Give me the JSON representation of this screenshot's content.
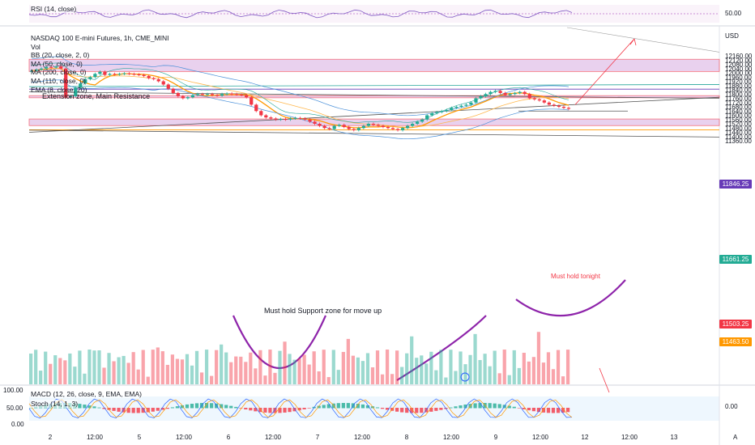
{
  "chart_data": {
    "type": "candlestick",
    "instrument": "NASDAQ 100 E-mini Futures, 1h, CME_MINI",
    "currency": "USD",
    "price_axis": {
      "ticks": [
        "12160.00",
        "12120.00",
        "12080.00",
        "12040.00",
        "12000.00",
        "11960.00",
        "11920.00",
        "11880.00",
        "11840.00",
        "11800.00",
        "11760.00",
        "11720.00",
        "11680.00",
        "11640.00",
        "11600.00",
        "11560.00",
        "11520.00",
        "11480.00",
        "11440.00",
        "11400.00",
        "11360.00"
      ],
      "range": [
        11340,
        12200
      ]
    },
    "time_axis": {
      "ticks": [
        "2",
        "12:00",
        "5",
        "12:00",
        "6",
        "12:00",
        "7",
        "12:00",
        "8",
        "12:00",
        "9",
        "12:00",
        "12",
        "12:00",
        "13"
      ]
    },
    "indicators": [
      "Vol",
      "BB (20, close, 2, 0)",
      "MA (50, close, 0)",
      "MA (200, close, 0)",
      "MA (110, close, 0)",
      "EMA (8, close, 20)"
    ],
    "price_labels": [
      {
        "text": "11846.25",
        "value": 11846.25,
        "color": "#673ab7"
      },
      {
        "text": "11661.25",
        "value": 11661.25,
        "color": "#22ab94"
      },
      {
        "text": "11503.25",
        "value": 11503.25,
        "color": "#f23645"
      },
      {
        "text": "11463.50",
        "value": 11463.5,
        "color": "#ff9800"
      }
    ],
    "candles_close": [
      12020,
      12030,
      12040,
      12055,
      12050,
      12060,
      12040,
      11770,
      11780,
      11860,
      11900,
      11940,
      11960,
      11990,
      12010,
      11980,
      11990,
      11985,
      11990,
      11995,
      11990,
      11985,
      11980,
      11970,
      11950,
      11940,
      11920,
      11890,
      11850,
      11810,
      11780,
      11760,
      11770,
      11790,
      11800,
      11795,
      11800,
      11790,
      11785,
      11800,
      11805,
      11800,
      11795,
      11790,
      11770,
      11700,
      11640,
      11600,
      11580,
      11570,
      11560,
      11565,
      11560,
      11570,
      11575,
      11570,
      11560,
      11540,
      11520,
      11500,
      11480,
      11470,
      11500,
      11510,
      11490,
      11470,
      11460,
      11480,
      11500,
      11520,
      11510,
      11500,
      11490,
      11480,
      11470,
      11460,
      11480,
      11500,
      11520,
      11540,
      11560,
      11600,
      11620,
      11630,
      11640,
      11650,
      11670,
      11680,
      11690,
      11700,
      11720,
      11760,
      11780,
      11800,
      11820,
      11830,
      11810,
      11790,
      11800,
      11810,
      11820,
      11800,
      11760,
      11750,
      11740,
      11720,
      11700,
      11690,
      11680,
      11670,
      11661
    ],
    "annotations": [
      "Extension zone, Main Resistance",
      "Must hold Support zone for move up",
      "Must hold tonight"
    ],
    "rsi": {
      "label": "RSI (14, close)",
      "level": "50.00"
    },
    "macd": {
      "label": "MACD (12, 26, close, 9, EMA, EMA)",
      "axis": "100.00",
      "value": "0.00"
    },
    "stoch": {
      "label": "Stoch (14, 1, 3)",
      "axis": [
        "50.00",
        "0.00"
      ]
    }
  },
  "ui": {
    "rsi_label": "RSI (14, close)",
    "rsi_value": "50.00",
    "title": "NASDAQ 100 E-mini Futures, 1h, CME_MINI",
    "vol": "Vol",
    "bb": "BB (20, close, 2, 0)",
    "ma50": "MA (50, close, 0)",
    "ma200": "MA (200, close, 0)",
    "ma110": "MA (110, close, 0)",
    "ema": "EMA (8, close, 20)",
    "usd": "USD",
    "macd_label": "MACD (12, 26, close, 9, EMA, EMA)",
    "stoch_label": "Stoch (14, 1, 3)",
    "macd_axis": "100.00",
    "stoch_axis_50": "50.00",
    "stoch_axis_0": "0.00",
    "osc_value": "0.00",
    "annot_ext": "Extension zone, Main Resistance",
    "annot_support": "Must hold Support zone for move up",
    "annot_tonight": "Must hold tonight",
    "tag_1": "11846.25",
    "tag_2": "11661.25",
    "tag_3": "11503.25",
    "tag_4": "11463.50",
    "x_ticks": [
      "2",
      "12:00",
      "5",
      "12:00",
      "6",
      "12:00",
      "7",
      "12:00",
      "8",
      "12:00",
      "9",
      "12:00",
      "12",
      "12:00",
      "13"
    ],
    "auto_icon": "A"
  },
  "colors": {
    "up": "#22ab94",
    "down": "#f23645",
    "zone": "#e1bee7",
    "purple": "#8e24aa",
    "orange": "#ff9800",
    "blue": "#2962ff"
  }
}
